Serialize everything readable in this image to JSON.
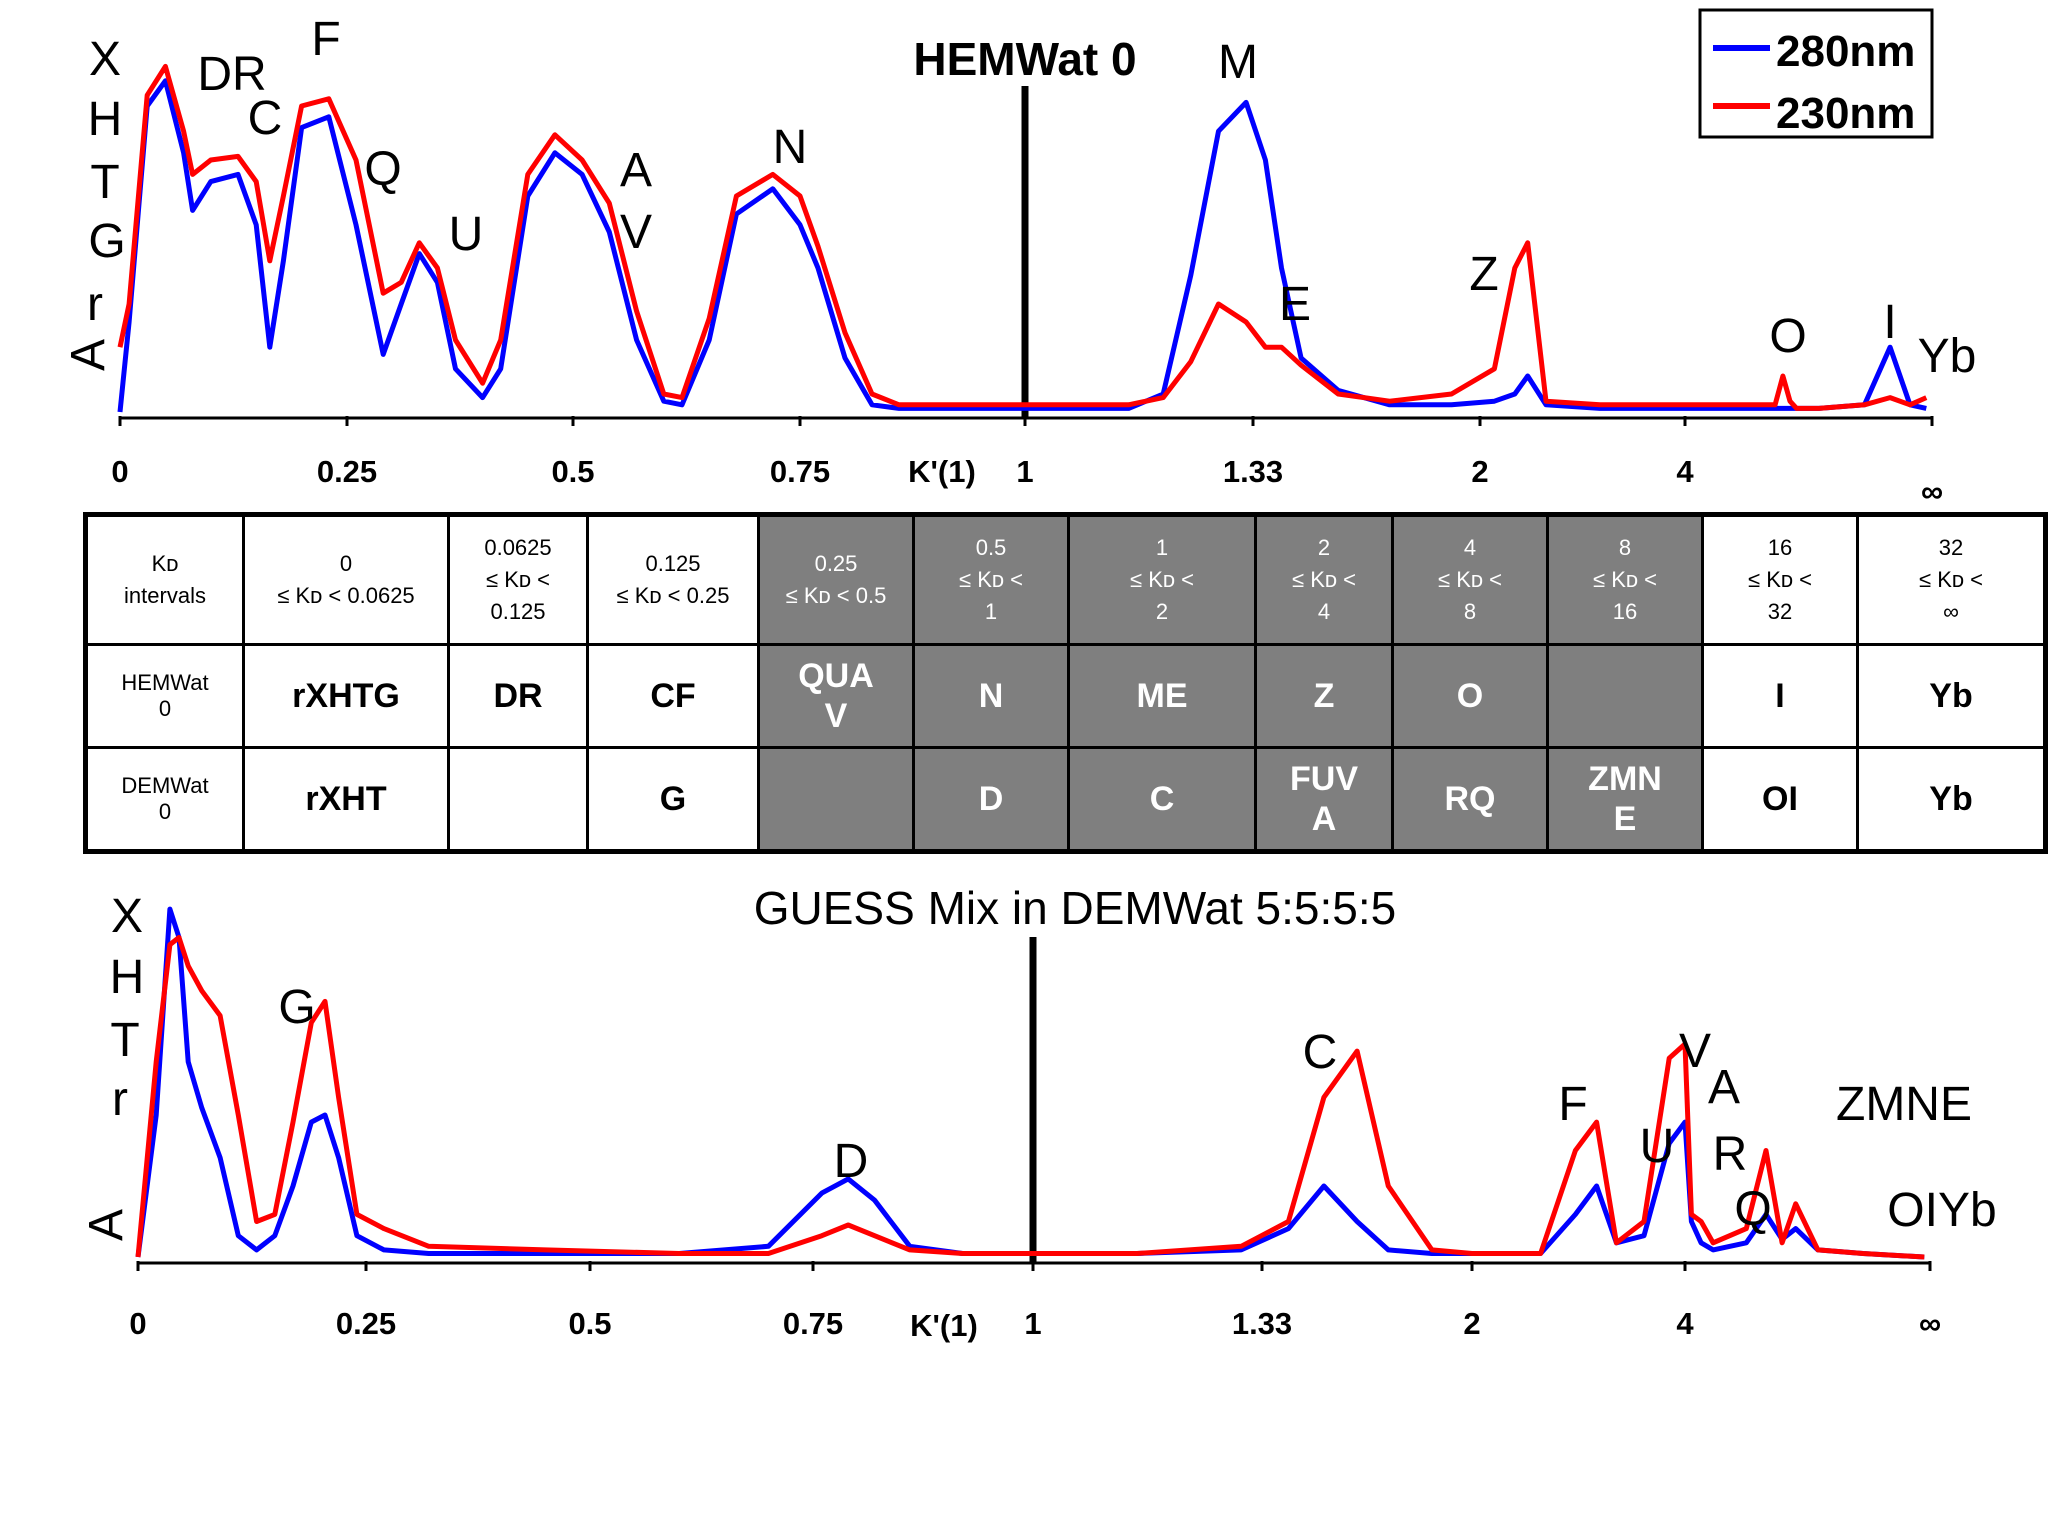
{
  "chart_data": [
    {
      "type": "line",
      "title": "HEMWat 0",
      "xlabel": "K'(1)",
      "ylabel": "A",
      "x_ticks": [
        "0",
        "0.25",
        "0.5",
        "0.75",
        "1",
        "1.33",
        "2",
        "4",
        "∞"
      ],
      "legend": {
        "placement": "top-right",
        "entries": [
          "280nm",
          "230nm"
        ]
      },
      "colors": {
        "280nm": "#0000ff",
        "230nm": "#ff0000"
      },
      "series": [
        {
          "name": "280nm",
          "x": [
            0,
            0.01,
            0.03,
            0.05,
            0.07,
            0.08,
            0.1,
            0.13,
            0.15,
            0.165,
            0.18,
            0.2,
            0.23,
            0.26,
            0.29,
            0.31,
            0.33,
            0.35,
            0.37,
            0.4,
            0.42,
            0.45,
            0.48,
            0.51,
            0.54,
            0.57,
            0.6,
            0.62,
            0.65,
            0.68,
            0.72,
            0.75,
            0.77,
            0.8,
            0.83,
            0.86,
            0.89,
            0.93,
            1.0,
            1.07,
            1.15,
            1.2,
            1.24,
            1.28,
            1.32,
            1.36,
            1.4,
            1.45,
            1.55,
            1.7,
            1.9,
            2.1,
            2.25,
            2.35,
            2.5,
            3.0,
            4.0,
            6.0,
            9.0,
            11.0,
            12.0,
            13.0,
            14.0,
            18.0,
            30.0,
            40.0,
            50.0,
            60.0
          ],
          "y": [
            0.0,
            0.25,
            0.85,
            0.92,
            0.72,
            0.56,
            0.64,
            0.66,
            0.52,
            0.18,
            0.42,
            0.79,
            0.82,
            0.52,
            0.16,
            0.3,
            0.44,
            0.36,
            0.12,
            0.04,
            0.12,
            0.6,
            0.72,
            0.66,
            0.5,
            0.2,
            0.03,
            0.02,
            0.2,
            0.55,
            0.62,
            0.52,
            0.4,
            0.15,
            0.02,
            0.01,
            0.01,
            0.01,
            0.01,
            0.01,
            0.01,
            0.05,
            0.38,
            0.78,
            0.86,
            0.7,
            0.4,
            0.15,
            0.06,
            0.02,
            0.02,
            0.03,
            0.05,
            0.1,
            0.02,
            0.01,
            0.01,
            0.01,
            0.01,
            0.01,
            0.01,
            0.01,
            0.01,
            0.01,
            0.02,
            0.18,
            0.02,
            0.01
          ]
        },
        {
          "name": "230nm",
          "x": [
            0,
            0.01,
            0.03,
            0.05,
            0.07,
            0.08,
            0.1,
            0.13,
            0.15,
            0.165,
            0.18,
            0.2,
            0.23,
            0.26,
            0.29,
            0.31,
            0.33,
            0.35,
            0.37,
            0.4,
            0.42,
            0.45,
            0.48,
            0.51,
            0.54,
            0.57,
            0.6,
            0.62,
            0.65,
            0.68,
            0.72,
            0.75,
            0.77,
            0.8,
            0.83,
            0.86,
            0.89,
            0.93,
            1.0,
            1.07,
            1.15,
            1.2,
            1.24,
            1.28,
            1.32,
            1.36,
            1.4,
            1.45,
            1.55,
            1.7,
            1.9,
            2.1,
            2.25,
            2.35,
            2.5,
            3.0,
            4.0,
            6.0,
            9.0,
            11.0,
            12.0,
            13.0,
            14.0,
            18.0,
            30.0,
            40.0,
            50.0,
            60.0
          ],
          "y": [
            0.18,
            0.3,
            0.88,
            0.96,
            0.78,
            0.66,
            0.7,
            0.71,
            0.64,
            0.42,
            0.6,
            0.85,
            0.87,
            0.7,
            0.33,
            0.36,
            0.47,
            0.4,
            0.2,
            0.08,
            0.2,
            0.66,
            0.77,
            0.7,
            0.58,
            0.28,
            0.05,
            0.04,
            0.26,
            0.6,
            0.66,
            0.6,
            0.46,
            0.22,
            0.05,
            0.02,
            0.02,
            0.02,
            0.02,
            0.02,
            0.02,
            0.04,
            0.14,
            0.3,
            0.25,
            0.18,
            0.18,
            0.13,
            0.05,
            0.03,
            0.05,
            0.12,
            0.4,
            0.47,
            0.03,
            0.02,
            0.02,
            0.02,
            0.02,
            0.02,
            0.1,
            0.03,
            0.01,
            0.01,
            0.02,
            0.04,
            0.02,
            0.04
          ]
        }
      ],
      "peak_labels": [
        "X",
        "H",
        "T",
        "G",
        "r",
        "DR",
        "C",
        "F",
        "Q",
        "U",
        "A",
        "V",
        "N",
        "M",
        "E",
        "Z",
        "O",
        "I",
        "Yb"
      ]
    },
    {
      "type": "line",
      "title": "GUESS Mix in DEMWat  5:5:5:5",
      "xlabel": "K'(1)",
      "ylabel": "A",
      "x_ticks": [
        "0",
        "0.25",
        "0.5",
        "0.75",
        "1",
        "1.33",
        "2",
        "4",
        "∞"
      ],
      "colors": {
        "280nm": "#0000ff",
        "230nm": "#ff0000"
      },
      "series": [
        {
          "name": "280nm",
          "x": [
            0,
            0.02,
            0.035,
            0.045,
            0.055,
            0.07,
            0.09,
            0.11,
            0.13,
            0.15,
            0.17,
            0.19,
            0.205,
            0.22,
            0.24,
            0.27,
            0.32,
            0.45,
            0.6,
            0.7,
            0.76,
            0.79,
            0.82,
            0.86,
            0.92,
            1.0,
            1.15,
            1.3,
            1.4,
            1.5,
            1.6,
            1.7,
            1.85,
            2.0,
            2.5,
            2.8,
            3.0,
            3.2,
            3.5,
            3.8,
            4.0,
            4.3,
            4.8,
            5.5,
            8.0,
            10.0,
            12.0,
            14.0,
            18.0,
            30.0,
            60.0
          ],
          "y": [
            0.0,
            0.4,
            0.98,
            0.9,
            0.55,
            0.42,
            0.28,
            0.06,
            0.02,
            0.06,
            0.2,
            0.38,
            0.4,
            0.28,
            0.06,
            0.02,
            0.01,
            0.01,
            0.01,
            0.03,
            0.18,
            0.22,
            0.16,
            0.03,
            0.01,
            0.01,
            0.01,
            0.02,
            0.08,
            0.2,
            0.1,
            0.02,
            0.01,
            0.01,
            0.01,
            0.12,
            0.2,
            0.04,
            0.06,
            0.32,
            0.38,
            0.1,
            0.04,
            0.02,
            0.04,
            0.12,
            0.05,
            0.08,
            0.02,
            0.01,
            0.0
          ]
        },
        {
          "name": "230nm",
          "x": [
            0,
            0.02,
            0.035,
            0.045,
            0.055,
            0.07,
            0.09,
            0.11,
            0.13,
            0.15,
            0.17,
            0.19,
            0.205,
            0.22,
            0.24,
            0.27,
            0.32,
            0.45,
            0.6,
            0.7,
            0.76,
            0.79,
            0.82,
            0.86,
            0.92,
            1.0,
            1.15,
            1.3,
            1.4,
            1.5,
            1.6,
            1.7,
            1.85,
            2.0,
            2.5,
            2.8,
            3.0,
            3.2,
            3.5,
            3.8,
            4.0,
            4.3,
            4.8,
            5.5,
            8.0,
            10.0,
            12.0,
            14.0,
            18.0,
            30.0,
            60.0
          ],
          "y": [
            0.0,
            0.55,
            0.88,
            0.9,
            0.82,
            0.75,
            0.68,
            0.4,
            0.1,
            0.12,
            0.38,
            0.66,
            0.72,
            0.45,
            0.12,
            0.08,
            0.03,
            0.02,
            0.01,
            0.01,
            0.06,
            0.09,
            0.06,
            0.02,
            0.01,
            0.01,
            0.01,
            0.03,
            0.1,
            0.45,
            0.58,
            0.2,
            0.02,
            0.01,
            0.01,
            0.3,
            0.38,
            0.04,
            0.1,
            0.56,
            0.6,
            0.12,
            0.1,
            0.04,
            0.08,
            0.3,
            0.04,
            0.15,
            0.02,
            0.01,
            0.0
          ]
        }
      ],
      "peak_labels": [
        "X",
        "H",
        "T",
        "r",
        "G",
        "D",
        "C",
        "F",
        "U",
        "V",
        "A",
        "R",
        "Q",
        "ZMNE",
        "OIYb"
      ]
    }
  ],
  "kd_table": {
    "header": [
      {
        "lines": [
          "Kᴅ",
          "intervals"
        ],
        "grey": false
      },
      {
        "lines": [
          "0",
          "≤ Kᴅ < 0.0625"
        ],
        "grey": false
      },
      {
        "lines": [
          "0.0625",
          "≤ Kᴅ <",
          "0.125"
        ],
        "grey": false
      },
      {
        "lines": [
          "0.125",
          "≤ Kᴅ < 0.25"
        ],
        "grey": false
      },
      {
        "lines": [
          "0.25",
          "≤ Kᴅ < 0.5"
        ],
        "grey": true
      },
      {
        "lines": [
          "0.5",
          "≤ Kᴅ <",
          "1"
        ],
        "grey": true
      },
      {
        "lines": [
          "1",
          "≤ Kᴅ <",
          "2"
        ],
        "grey": true
      },
      {
        "lines": [
          "2",
          "≤ Kᴅ <",
          "4"
        ],
        "grey": true
      },
      {
        "lines": [
          "4",
          "≤ Kᴅ <",
          "8"
        ],
        "grey": true
      },
      {
        "lines": [
          "8",
          "≤ Kᴅ <",
          "16"
        ],
        "grey": true
      },
      {
        "lines": [
          "16",
          "≤ Kᴅ <",
          "32"
        ],
        "grey": false
      },
      {
        "lines": [
          "32",
          "≤ Kᴅ <",
          "∞"
        ],
        "grey": false
      }
    ],
    "rows": [
      {
        "label": [
          "HEMWat",
          "0"
        ],
        "cells": [
          [
            "rXHTG"
          ],
          [
            "DR"
          ],
          [
            "CF"
          ],
          [
            "QUA",
            "V"
          ],
          [
            "N"
          ],
          [
            "ME"
          ],
          [
            "Z"
          ],
          [
            "O"
          ],
          [
            ""
          ],
          [
            "I"
          ],
          [
            "Yb"
          ]
        ]
      },
      {
        "label": [
          "DEMWat",
          "0"
        ],
        "cells": [
          [
            "rXHT"
          ],
          [
            ""
          ],
          [
            "G"
          ],
          [
            ""
          ],
          [
            "D"
          ],
          [
            "C"
          ],
          [
            "FUV",
            "A"
          ],
          [
            "RQ"
          ],
          [
            "ZMN",
            "E"
          ],
          [
            "OI"
          ],
          [
            "Yb"
          ]
        ]
      }
    ]
  }
}
